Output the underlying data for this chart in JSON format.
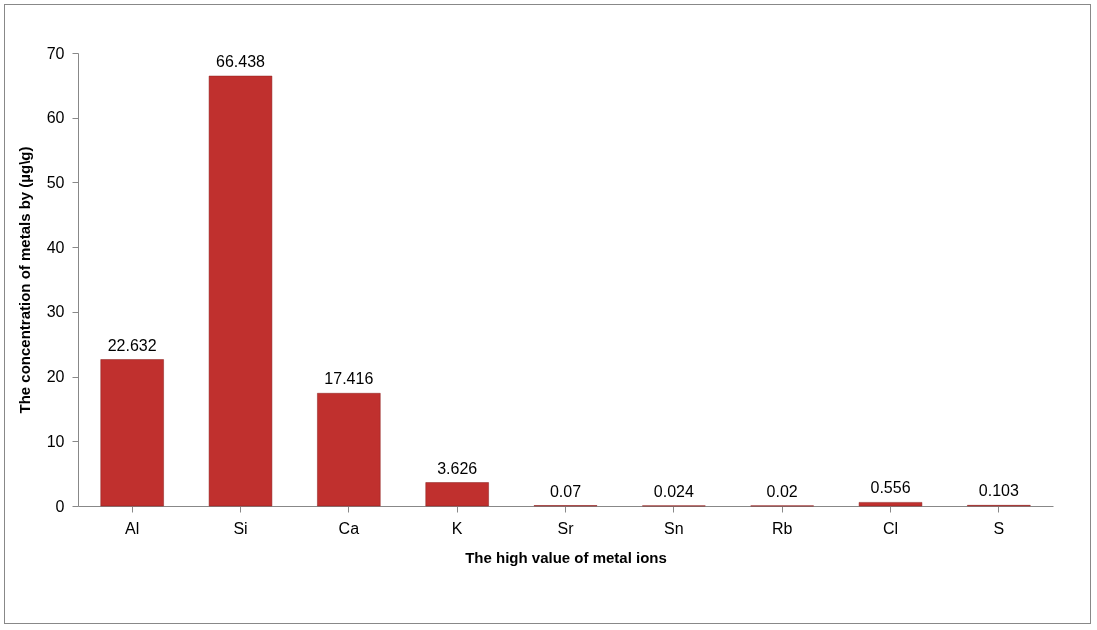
{
  "chart_data": {
    "type": "bar",
    "xlabel": "The high value of metal ions",
    "ylabel": "The concentration of metals by (µg\\g)",
    "categories": [
      "Al",
      "Si",
      "Ca",
      "K",
      "Sr",
      "Sn",
      "Rb",
      "Cl",
      "S"
    ],
    "values": [
      22.632,
      66.438,
      17.416,
      3.626,
      0.07,
      0.024,
      0.02,
      0.556,
      0.103
    ],
    "color": "#c0302e",
    "ylim": [
      0,
      70
    ],
    "yticks": [
      0,
      10,
      20,
      30,
      40,
      50,
      60,
      70
    ],
    "grid": false,
    "data_labels": true
  }
}
